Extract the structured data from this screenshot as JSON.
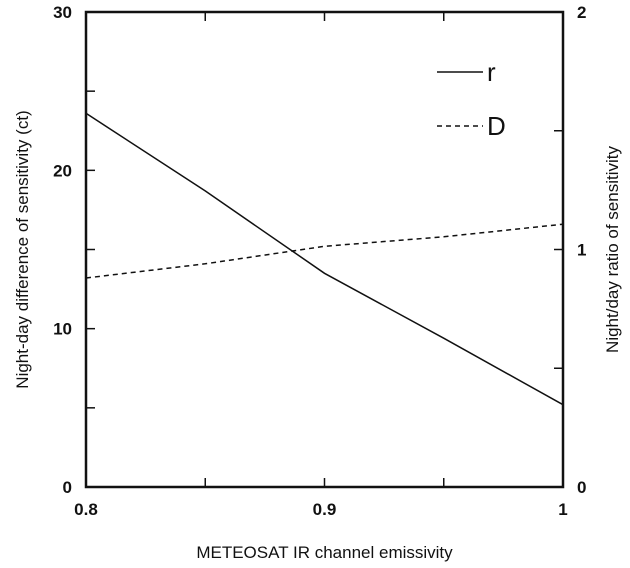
{
  "chart_data": {
    "type": "line",
    "title": "",
    "xlabel": "METEOSAT IR channel emissivity",
    "ylabel_left": "Night-day difference of sensitivity  (ct)",
    "ylabel_right": "Night/day ratio of sensitivity",
    "xlim": [
      0.8,
      1.0
    ],
    "ylim_left": [
      0,
      30
    ],
    "ylim_right": [
      0,
      2
    ],
    "x_ticks": [
      0.8,
      0.85,
      0.9,
      0.95,
      1.0
    ],
    "x_tick_labels": [
      {
        "value": 0.8,
        "label": "0.8"
      },
      {
        "value": 0.9,
        "label": "0.9"
      },
      {
        "value": 1.0,
        "label": "1"
      }
    ],
    "y_left_ticks": [
      0,
      5,
      10,
      15,
      20,
      25,
      30
    ],
    "y_left_tick_labels": [
      {
        "value": 0,
        "label": "0"
      },
      {
        "value": 10,
        "label": "10"
      },
      {
        "value": 20,
        "label": "20"
      },
      {
        "value": 30,
        "label": "30"
      }
    ],
    "y_right_ticks": [
      0,
      0.5,
      1,
      1.5,
      2
    ],
    "y_right_tick_labels": [
      {
        "value": 0,
        "label": "0"
      },
      {
        "value": 1,
        "label": "1"
      },
      {
        "value": 2,
        "label": "2"
      }
    ],
    "grid": false,
    "legend_position": "top-right",
    "series": [
      {
        "name": "r",
        "style": "solid",
        "axis": "left",
        "x": [
          0.8,
          0.85,
          0.9,
          0.95,
          1.0
        ],
        "y": [
          23.6,
          18.7,
          13.5,
          9.4,
          5.2
        ]
      },
      {
        "name": "D",
        "style": "dashed",
        "axis": "left",
        "x": [
          0.8,
          0.85,
          0.9,
          0.95,
          1.0
        ],
        "y": [
          13.2,
          14.1,
          15.2,
          15.8,
          16.6
        ]
      }
    ]
  }
}
